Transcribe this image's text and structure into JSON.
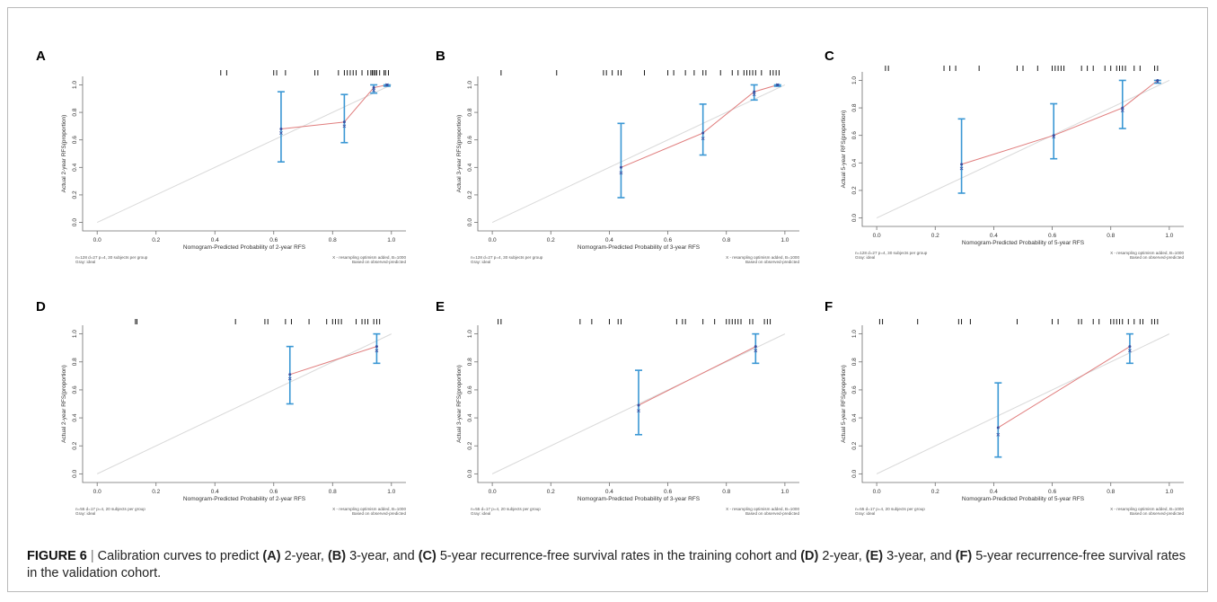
{
  "figure": {
    "caption_label": "FIGURE 6",
    "caption_separator": "|",
    "caption_parts": [
      {
        "text": "Calibration curves to predict ",
        "bold": false
      },
      {
        "text": "(A)",
        "bold": true
      },
      {
        "text": " 2-year, ",
        "bold": false
      },
      {
        "text": "(B)",
        "bold": true
      },
      {
        "text": " 3-year, and ",
        "bold": false
      },
      {
        "text": "(C)",
        "bold": true
      },
      {
        "text": " 5-year recurrence-free survival rates in the training cohort and ",
        "bold": false
      },
      {
        "text": "(D)",
        "bold": true
      },
      {
        "text": " 2-year, ",
        "bold": false
      },
      {
        "text": "(E)",
        "bold": true
      },
      {
        "text": " 3-year, and ",
        "bold": false
      },
      {
        "text": "(F)",
        "bold": true
      },
      {
        "text": " 5-year recurrence-free survival rates in the validation cohort.",
        "bold": false
      }
    ]
  },
  "colors": {
    "ideal_line": "#d9d9d9",
    "calibration_line": "#e07d7d",
    "error_bar": "#3a97d4",
    "point": "#3a4fa0",
    "axis": "#6e6e6e",
    "rug": "#000000"
  },
  "chart_data": [
    {
      "panel": "A",
      "type": "line",
      "xlabel": "Nomogram-Predicted Probability of 2-year RFS",
      "ylabel": "Actual 2-year RFS(proportion)",
      "xlim": [
        0,
        1
      ],
      "ylim": [
        0,
        1
      ],
      "x_ticks": [
        "0.0",
        "0.2",
        "0.4",
        "0.6",
        "0.8",
        "1.0"
      ],
      "y_ticks": [
        "0.0",
        "0.2",
        "0.4",
        "0.6",
        "0.8",
        "1.0"
      ],
      "footnote_left": [
        "n=128 d=27 p=4, 30 subjects per group",
        "Gray: ideal"
      ],
      "footnote_right": [
        "X - resampling optimism added, B=1000",
        "Based on observed-predicted"
      ],
      "points": [
        {
          "x": 0.625,
          "observed": 0.68,
          "corrected": 0.65,
          "lower": 0.44,
          "upper": 0.95
        },
        {
          "x": 0.84,
          "observed": 0.73,
          "corrected": 0.7,
          "lower": 0.58,
          "upper": 0.93
        },
        {
          "x": 0.94,
          "observed": 0.98,
          "corrected": 0.96,
          "lower": 0.94,
          "upper": 1.0
        },
        {
          "x": 0.985,
          "observed": 1.0,
          "corrected": 1.0,
          "lower": 0.99,
          "upper": 1.0
        }
      ],
      "rug": [
        0.42,
        0.44,
        0.6,
        0.61,
        0.64,
        0.74,
        0.75,
        0.82,
        0.84,
        0.85,
        0.86,
        0.87,
        0.88,
        0.9,
        0.92,
        0.93,
        0.935,
        0.94,
        0.945,
        0.95,
        0.96,
        0.975,
        0.98,
        0.99
      ]
    },
    {
      "panel": "B",
      "type": "line",
      "xlabel": "Nomogram-Predicted Probability of 3-year RFS",
      "ylabel": "Actual 3-year RFS(proportion)",
      "xlim": [
        0,
        1
      ],
      "ylim": [
        0,
        1
      ],
      "x_ticks": [
        "0.0",
        "0.2",
        "0.4",
        "0.6",
        "0.8",
        "1.0"
      ],
      "y_ticks": [
        "0.0",
        "0.2",
        "0.4",
        "0.6",
        "0.8",
        "1.0"
      ],
      "footnote_left": [
        "n=128 d=27 p=4, 30 subjects per group",
        "Gray: ideal"
      ],
      "footnote_right": [
        "X - resampling optimism added, B=1000",
        "Based on observed-predicted"
      ],
      "points": [
        {
          "x": 0.44,
          "observed": 0.4,
          "corrected": 0.36,
          "lower": 0.18,
          "upper": 0.72
        },
        {
          "x": 0.72,
          "observed": 0.65,
          "corrected": 0.61,
          "lower": 0.49,
          "upper": 0.86
        },
        {
          "x": 0.895,
          "observed": 0.95,
          "corrected": 0.93,
          "lower": 0.89,
          "upper": 1.0
        },
        {
          "x": 0.975,
          "observed": 1.0,
          "corrected": 1.0,
          "lower": 0.99,
          "upper": 1.0
        }
      ],
      "rug": [
        0.03,
        0.22,
        0.38,
        0.39,
        0.41,
        0.43,
        0.44,
        0.52,
        0.6,
        0.62,
        0.66,
        0.69,
        0.72,
        0.73,
        0.78,
        0.82,
        0.84,
        0.86,
        0.87,
        0.88,
        0.89,
        0.9,
        0.92,
        0.95,
        0.96,
        0.97,
        0.98
      ]
    },
    {
      "panel": "C",
      "type": "line",
      "xlabel": "Nomogram-Predicted Probability of 5-year RFS",
      "ylabel": "Actual 5-year RFS(proportion)",
      "xlim": [
        0,
        1
      ],
      "ylim": [
        0,
        1
      ],
      "x_ticks": [
        "0.0",
        "0.2",
        "0.4",
        "0.6",
        "0.8",
        "1.0"
      ],
      "y_ticks": [
        "0.0",
        "0.2",
        "0.4",
        "0.6",
        "0.8",
        "1.0"
      ],
      "footnote_left": [
        "n=128 d=27 p=4, 30 subjects per group",
        "Gray: ideal"
      ],
      "footnote_right": [
        "X - resampling optimism added, B=1000",
        "Based on observed-predicted"
      ],
      "points": [
        {
          "x": 0.29,
          "observed": 0.39,
          "corrected": 0.36,
          "lower": 0.18,
          "upper": 0.72
        },
        {
          "x": 0.605,
          "observed": 0.6,
          "corrected": 0.59,
          "lower": 0.43,
          "upper": 0.83
        },
        {
          "x": 0.84,
          "observed": 0.8,
          "corrected": 0.78,
          "lower": 0.65,
          "upper": 1.0
        },
        {
          "x": 0.96,
          "observed": 1.0,
          "corrected": 0.99,
          "lower": 0.98,
          "upper": 1.0
        }
      ],
      "rug": [
        0.03,
        0.04,
        0.23,
        0.25,
        0.27,
        0.35,
        0.48,
        0.5,
        0.55,
        0.6,
        0.61,
        0.62,
        0.63,
        0.64,
        0.7,
        0.72,
        0.74,
        0.78,
        0.8,
        0.82,
        0.83,
        0.84,
        0.85,
        0.88,
        0.9,
        0.95,
        0.96
      ]
    },
    {
      "panel": "D",
      "type": "line",
      "xlabel": "Nomogram-Predicted Probability of 2-year RFS",
      "ylabel": "Actual 2-year RFS(proportion)",
      "xlim": [
        0,
        1
      ],
      "ylim": [
        0,
        1
      ],
      "x_ticks": [
        "0.0",
        "0.2",
        "0.4",
        "0.6",
        "0.8",
        "1.0"
      ],
      "y_ticks": [
        "0.0",
        "0.2",
        "0.4",
        "0.6",
        "0.8",
        "1.0"
      ],
      "footnote_left": [
        "n=55 d=17 p=4, 20 subjects per group",
        "Gray: ideal"
      ],
      "footnote_right": [
        "X - resampling optimism added, B=1000",
        "Based on observed-predicted"
      ],
      "points": [
        {
          "x": 0.655,
          "observed": 0.71,
          "corrected": 0.68,
          "lower": 0.5,
          "upper": 0.91
        },
        {
          "x": 0.95,
          "observed": 0.91,
          "corrected": 0.88,
          "lower": 0.79,
          "upper": 1.0
        }
      ],
      "rug": [
        0.13,
        0.135,
        0.47,
        0.57,
        0.58,
        0.64,
        0.66,
        0.72,
        0.78,
        0.8,
        0.81,
        0.82,
        0.83,
        0.88,
        0.9,
        0.91,
        0.92,
        0.94,
        0.95,
        0.96
      ]
    },
    {
      "panel": "E",
      "type": "line",
      "xlabel": "Nomogram-Predicted Probability of 3-year RFS",
      "ylabel": "Actual 3-year RFS(proportion)",
      "xlim": [
        0,
        1
      ],
      "ylim": [
        0,
        1
      ],
      "x_ticks": [
        "0.0",
        "0.2",
        "0.4",
        "0.6",
        "0.8",
        "1.0"
      ],
      "y_ticks": [
        "0.0",
        "0.2",
        "0.4",
        "0.6",
        "0.8",
        "1.0"
      ],
      "footnote_left": [
        "n=55 d=17 p=4, 20 subjects per group",
        "Gray: ideal"
      ],
      "footnote_right": [
        "X - resampling optimism added, B=1000",
        "Based on observed-predicted"
      ],
      "points": [
        {
          "x": 0.5,
          "observed": 0.49,
          "corrected": 0.45,
          "lower": 0.28,
          "upper": 0.74
        },
        {
          "x": 0.9,
          "observed": 0.91,
          "corrected": 0.88,
          "lower": 0.79,
          "upper": 1.0
        }
      ],
      "rug": [
        0.02,
        0.03,
        0.3,
        0.34,
        0.4,
        0.43,
        0.44,
        0.63,
        0.65,
        0.66,
        0.72,
        0.76,
        0.8,
        0.81,
        0.82,
        0.83,
        0.84,
        0.85,
        0.88,
        0.89,
        0.93,
        0.94,
        0.95
      ]
    },
    {
      "panel": "F",
      "type": "line",
      "xlabel": "Nomogram-Predicted Probability of 5-year RFS",
      "ylabel": "Actual 5-year RFS(proportion)",
      "xlim": [
        0,
        1
      ],
      "ylim": [
        0,
        1
      ],
      "x_ticks": [
        "0.0",
        "0.2",
        "0.4",
        "0.6",
        "0.8",
        "1.0"
      ],
      "y_ticks": [
        "0.0",
        "0.2",
        "0.4",
        "0.6",
        "0.8",
        "1.0"
      ],
      "footnote_left": [
        "n=55 d=17 p=4, 20 subjects per group",
        "Gray: ideal"
      ],
      "footnote_right": [
        "X - resampling optimism added, B=1000",
        "Based on observed-predicted"
      ],
      "points": [
        {
          "x": 0.415,
          "observed": 0.33,
          "corrected": 0.28,
          "lower": 0.12,
          "upper": 0.65
        },
        {
          "x": 0.865,
          "observed": 0.91,
          "corrected": 0.88,
          "lower": 0.79,
          "upper": 1.0
        }
      ],
      "rug": [
        0.01,
        0.02,
        0.14,
        0.28,
        0.29,
        0.32,
        0.48,
        0.6,
        0.62,
        0.69,
        0.7,
        0.74,
        0.76,
        0.8,
        0.81,
        0.82,
        0.83,
        0.84,
        0.86,
        0.88,
        0.9,
        0.91,
        0.94,
        0.95,
        0.96
      ]
    }
  ]
}
